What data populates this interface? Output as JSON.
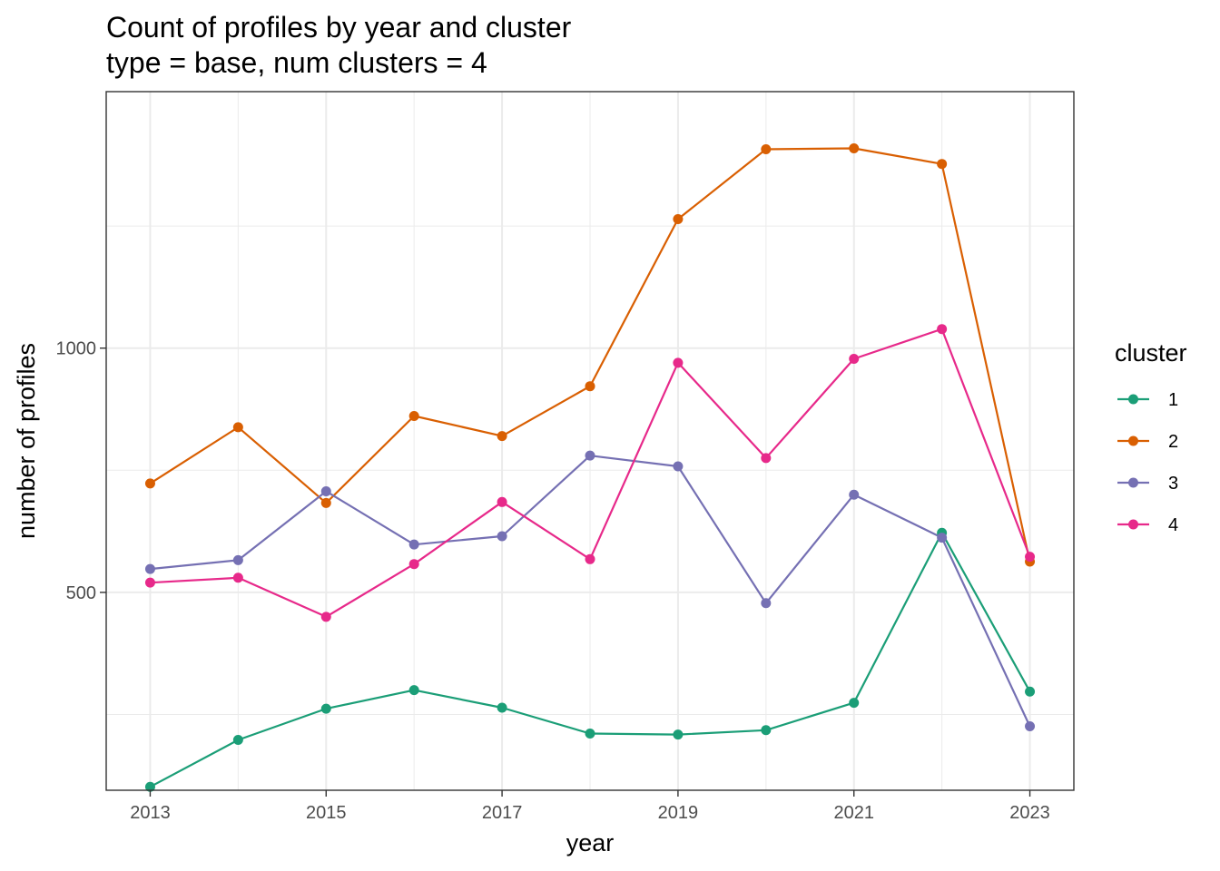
{
  "chart_data": {
    "type": "line",
    "title": "Count of profiles by year and cluster",
    "subtitle": "type = base, num clusters = 4",
    "xlabel": "year",
    "ylabel": "number of profiles",
    "x": [
      2013,
      2014,
      2015,
      2016,
      2017,
      2018,
      2019,
      2020,
      2021,
      2022,
      2023
    ],
    "x_ticks": [
      "2013",
      "2015",
      "2017",
      "2019",
      "2021",
      "2023"
    ],
    "y_ticks": [
      "500",
      "1000"
    ],
    "xlim": [
      2012.5,
      2023.5
    ],
    "ylim": [
      95,
      1525
    ],
    "grid": true,
    "legend_title": "cluster",
    "legend_position": "right",
    "series": [
      {
        "name": "1",
        "color": "#1b9e77",
        "values": [
          102,
          198,
          262,
          300,
          264,
          211,
          209,
          218,
          274,
          622,
          297
        ]
      },
      {
        "name": "2",
        "color": "#d95f02",
        "values": [
          723,
          838,
          683,
          861,
          820,
          922,
          1264,
          1407,
          1409,
          1377,
          563
        ]
      },
      {
        "name": "3",
        "color": "#7570b3",
        "values": [
          548,
          566,
          707,
          598,
          615,
          780,
          758,
          478,
          700,
          612,
          226
        ]
      },
      {
        "name": "4",
        "color": "#e7298a",
        "values": [
          520,
          530,
          450,
          558,
          685,
          568,
          970,
          775,
          978,
          1039,
          573
        ]
      }
    ]
  }
}
